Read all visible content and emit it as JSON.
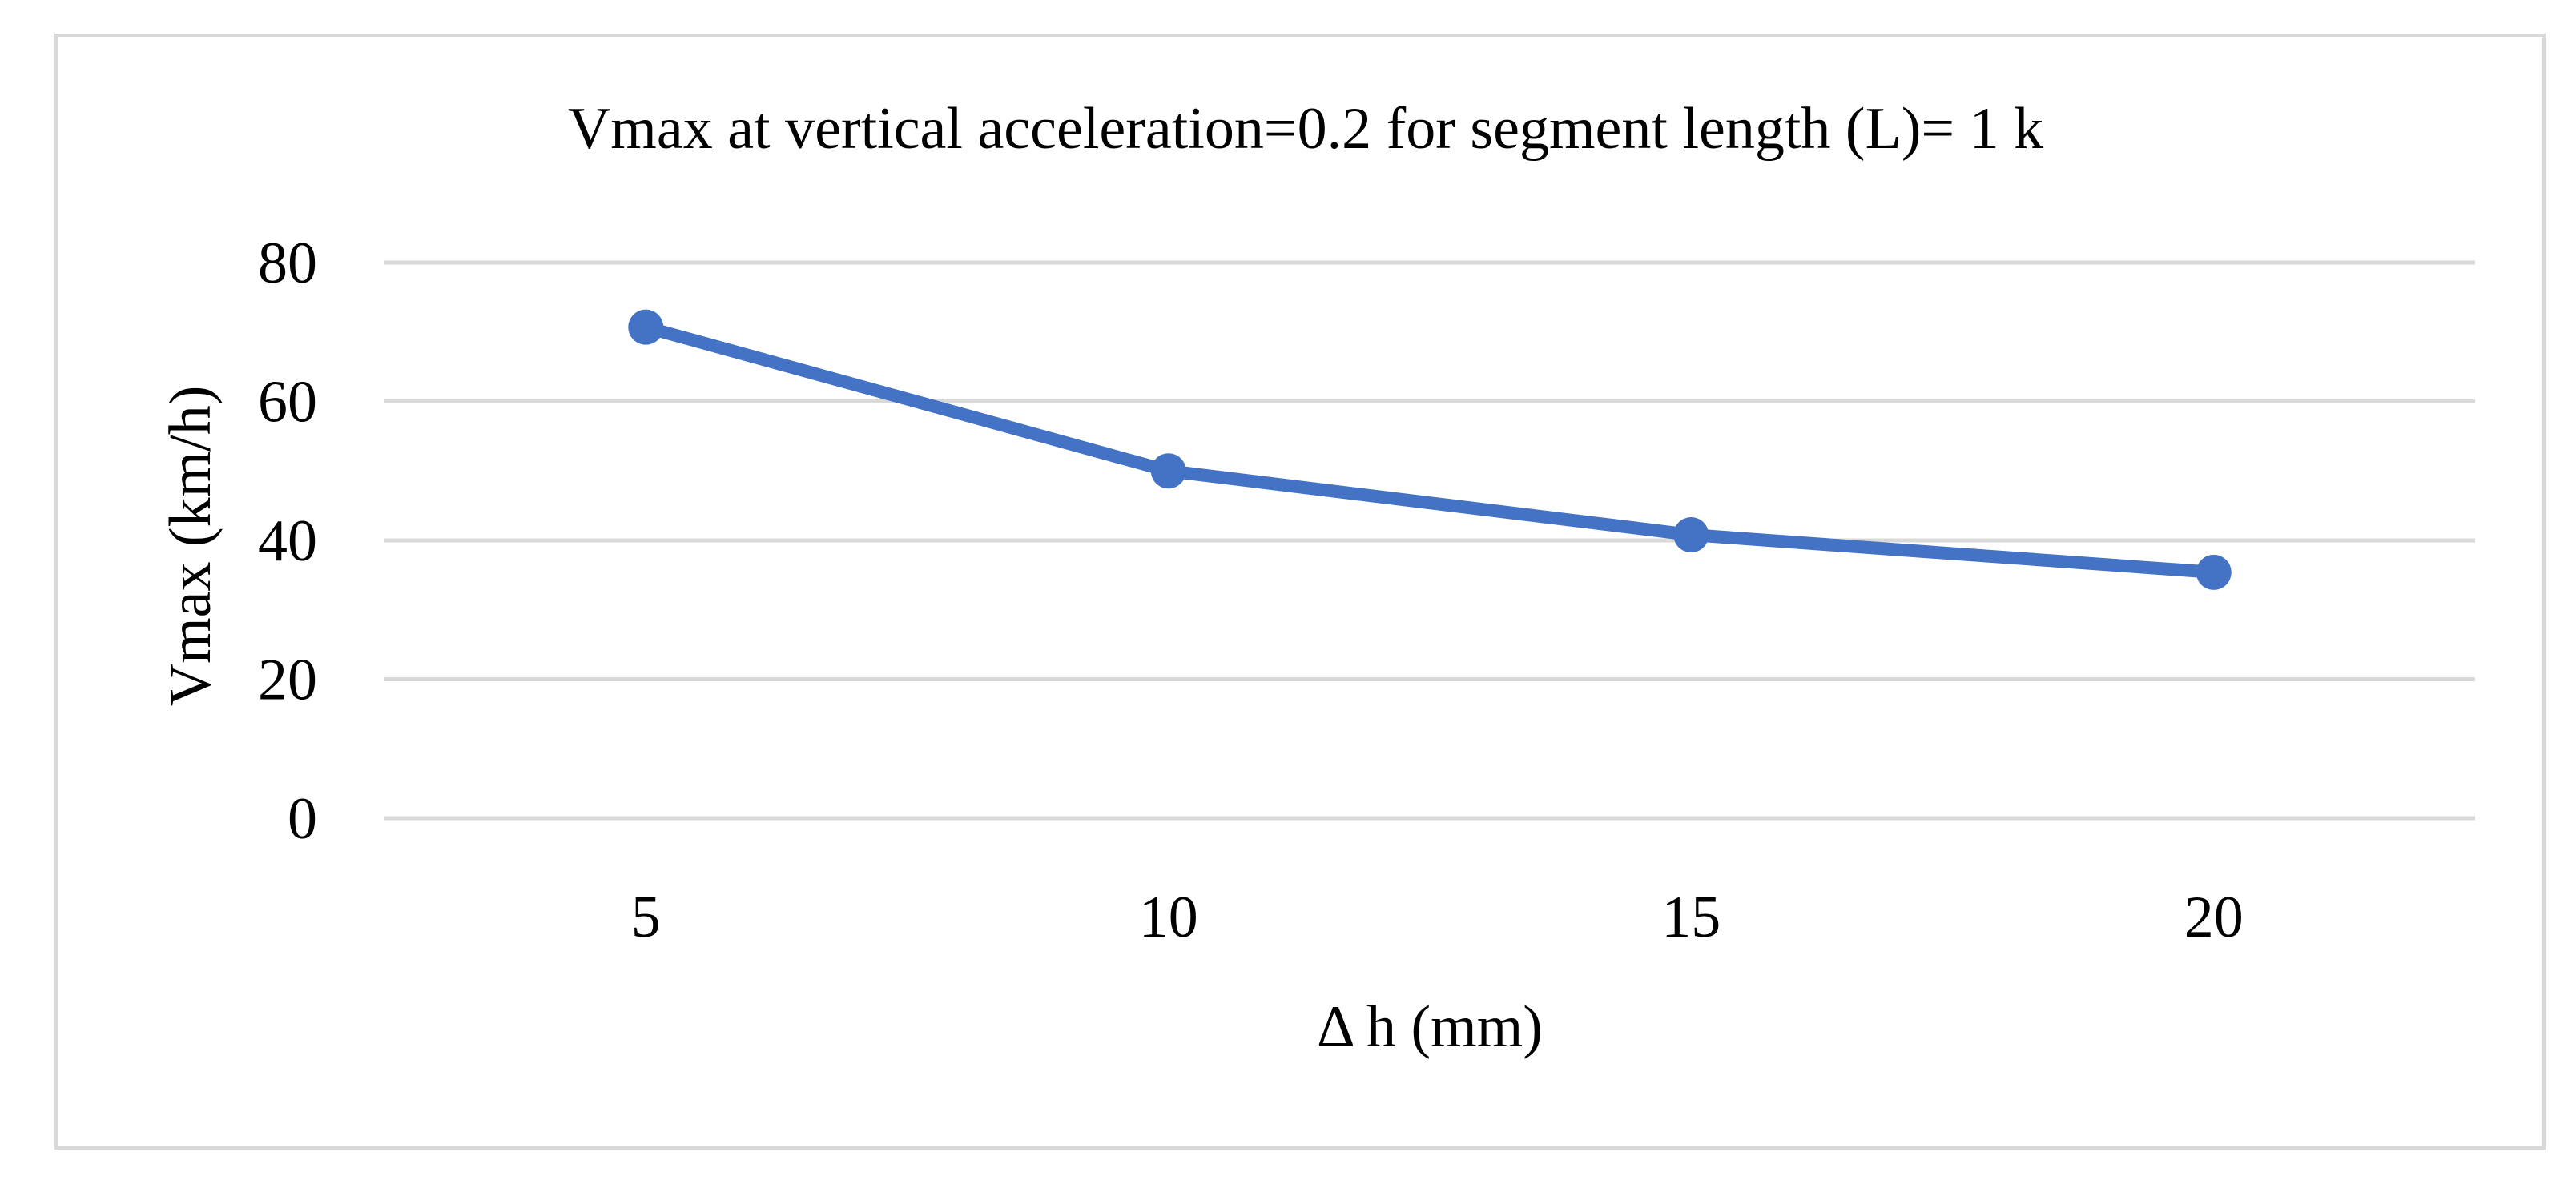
{
  "chart_data": {
    "type": "line",
    "title": "Vmax at vertical acceleration=0.2 for segment length (L)= 1 k",
    "xlabel": "Δ h (mm)",
    "ylabel": "Vmax (km/h)",
    "categories": [
      "5",
      "10",
      "15",
      "20"
    ],
    "series": [
      {
        "values": [
          70.7,
          50.0,
          40.8,
          35.4
        ]
      }
    ],
    "ylim": [
      0,
      80
    ],
    "yticks": [
      "0",
      "20",
      "40",
      "60",
      "80"
    ],
    "grid": true,
    "legend": "none",
    "colors": {
      "series": "#4472C4",
      "grid": "#D9D9D9",
      "frame": "#D9D9D9",
      "text": "#000000"
    }
  }
}
